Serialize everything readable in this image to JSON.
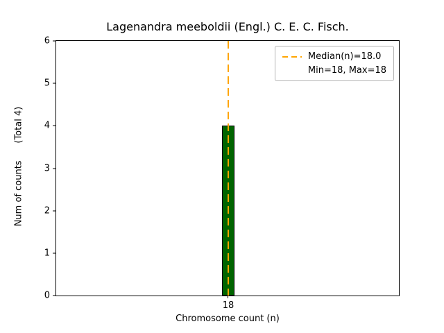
{
  "chart_data": {
    "type": "bar",
    "title": "Lagenandra meeboldii (Engl.) C. E. C. Fisch.",
    "xlabel": "Chromosome count (n)",
    "ylabel": "Num of counts      (Total 4)",
    "categories": [
      "18"
    ],
    "values": [
      4
    ],
    "ylim": [
      0,
      6
    ],
    "yticks": [
      0,
      1,
      2,
      3,
      4,
      5,
      6
    ],
    "grid": false,
    "bar_color": "#006400",
    "bar_edge_color": "#000000",
    "median_line": {
      "x": "18",
      "value": 18.0,
      "color": "#FFA500",
      "style": "dashed"
    },
    "legend": {
      "position": "top-right",
      "entries": [
        {
          "label": "Median(n)=18.0",
          "symbol": "dashed-line",
          "color": "#FFA500"
        },
        {
          "label": "Min=18, Max=18",
          "symbol": "none"
        }
      ]
    }
  }
}
